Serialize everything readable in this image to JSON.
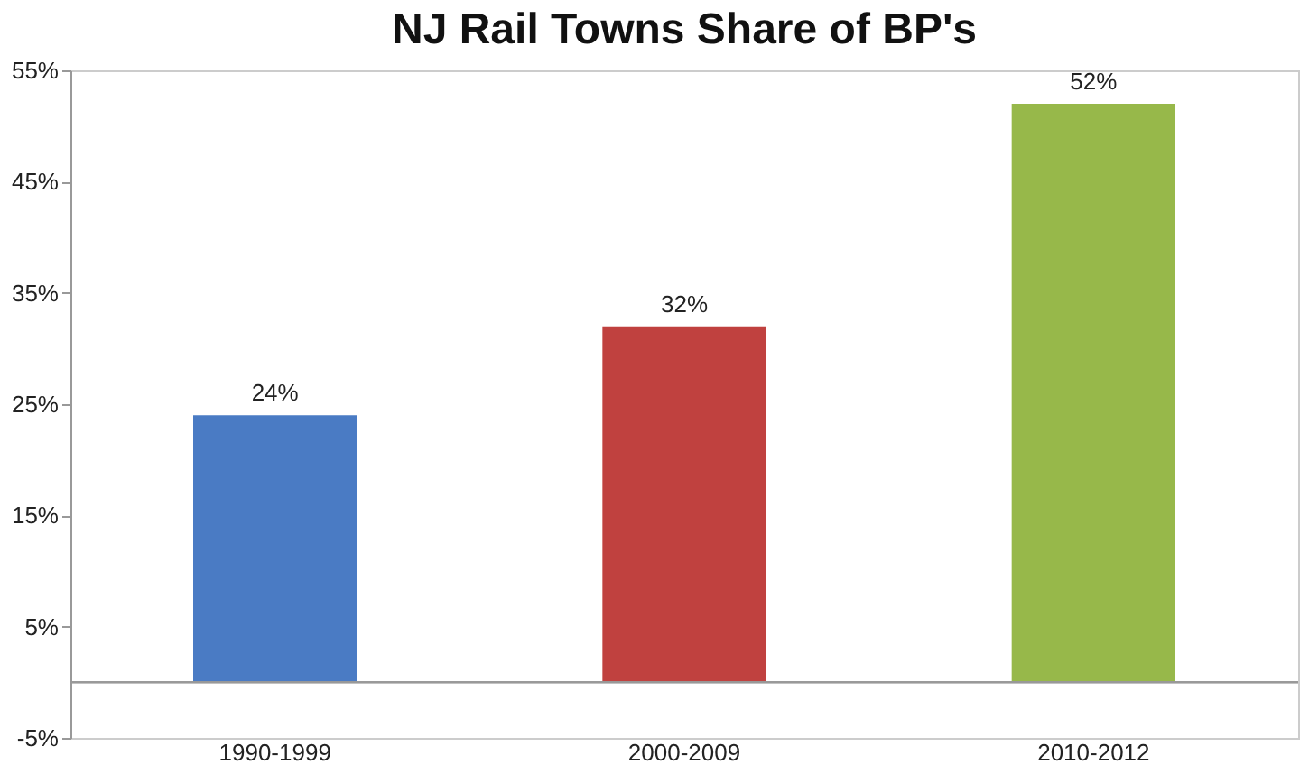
{
  "chart_data": {
    "type": "bar",
    "title": "NJ Rail Towns Share of BP's",
    "categories": [
      "1990-1999",
      "2000-2009",
      "2010-2012"
    ],
    "values": [
      24,
      32,
      52
    ],
    "colors": [
      "#4a7bc4",
      "#c0413f",
      "#97b84a"
    ],
    "value_labels": [
      "24%",
      "32%",
      "52%"
    ],
    "ylim": [
      -5,
      55
    ],
    "yticks": [
      {
        "value": -5,
        "label": "-5%"
      },
      {
        "value": 5,
        "label": "5%"
      },
      {
        "value": 15,
        "label": "15%"
      },
      {
        "value": 25,
        "label": "25%"
      },
      {
        "value": 35,
        "label": "35%"
      },
      {
        "value": 45,
        "label": "45%"
      },
      {
        "value": 55,
        "label": "55%"
      }
    ],
    "grid": false
  }
}
